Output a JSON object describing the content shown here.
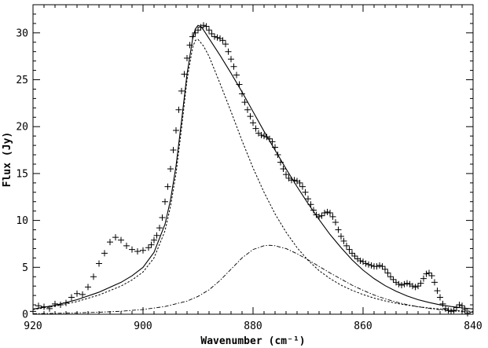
{
  "chart_data": {
    "type": "line",
    "title": "",
    "xlabel": "Wavenumber",
    "xlabel_unit": "(cm⁻¹)",
    "ylabel": "Flux (Jy)",
    "xlim": [
      920,
      840
    ],
    "ylim": [
      0,
      33
    ],
    "x_reversed": true,
    "grid": false,
    "legend": "none",
    "x_ticks": [
      920,
      900,
      880,
      860,
      840
    ],
    "x_tick_labels": [
      "920",
      "900",
      "880",
      "860",
      "840"
    ],
    "y_ticks": [
      0,
      5,
      10,
      15,
      20,
      25,
      30
    ],
    "y_tick_labels": [
      "0",
      "5",
      "10",
      "15",
      "20",
      "25",
      "30"
    ],
    "series": [
      {
        "style": "plus-markers",
        "points": [
          [
            920.0,
            0.3
          ],
          [
            919.0,
            0.9
          ],
          [
            918.0,
            0.8
          ],
          [
            917.0,
            0.6
          ],
          [
            916.0,
            1.1
          ],
          [
            915.0,
            1.0
          ],
          [
            914.0,
            1.2
          ],
          [
            913.0,
            1.8
          ],
          [
            912.0,
            2.2
          ],
          [
            911.0,
            2.1
          ],
          [
            910.0,
            2.9
          ],
          [
            909.0,
            4.0
          ],
          [
            908.0,
            5.4
          ],
          [
            907.0,
            6.5
          ],
          [
            906.0,
            7.7
          ],
          [
            905.0,
            8.2
          ],
          [
            904.0,
            7.9
          ],
          [
            903.0,
            7.3
          ],
          [
            902.0,
            6.9
          ],
          [
            901.0,
            6.7
          ],
          [
            900.0,
            6.8
          ],
          [
            899.0,
            7.1
          ],
          [
            898.5,
            7.4
          ],
          [
            898.0,
            7.9
          ],
          [
            897.5,
            8.4
          ],
          [
            897.0,
            9.2
          ],
          [
            896.5,
            10.3
          ],
          [
            896.0,
            12.0
          ],
          [
            895.5,
            13.6
          ],
          [
            895.0,
            15.5
          ],
          [
            894.5,
            17.5
          ],
          [
            894.0,
            19.6
          ],
          [
            893.5,
            21.8
          ],
          [
            893.0,
            23.8
          ],
          [
            892.5,
            25.6
          ],
          [
            892.0,
            27.3
          ],
          [
            891.5,
            28.7
          ],
          [
            891.0,
            29.6
          ],
          [
            890.5,
            30.0
          ],
          [
            890.0,
            30.3
          ],
          [
            889.5,
            30.6
          ],
          [
            889.0,
            30.8
          ],
          [
            888.5,
            30.7
          ],
          [
            888.0,
            30.3
          ],
          [
            887.5,
            29.9
          ],
          [
            887.0,
            29.6
          ],
          [
            886.5,
            29.5
          ],
          [
            886.0,
            29.4
          ],
          [
            885.5,
            29.2
          ],
          [
            885.0,
            28.8
          ],
          [
            884.5,
            28.0
          ],
          [
            884.0,
            27.2
          ],
          [
            883.5,
            26.4
          ],
          [
            883.0,
            25.5
          ],
          [
            882.5,
            24.5
          ],
          [
            882.0,
            23.5
          ],
          [
            881.5,
            22.6
          ],
          [
            881.0,
            21.8
          ],
          [
            880.5,
            21.1
          ],
          [
            880.0,
            20.4
          ],
          [
            879.5,
            19.8
          ],
          [
            879.0,
            19.3
          ],
          [
            878.5,
            19.1
          ],
          [
            878.0,
            19.0
          ],
          [
            877.5,
            18.9
          ],
          [
            877.0,
            18.7
          ],
          [
            876.5,
            18.4
          ],
          [
            876.0,
            17.8
          ],
          [
            875.5,
            17.0
          ],
          [
            875.0,
            16.2
          ],
          [
            874.5,
            15.5
          ],
          [
            874.0,
            14.9
          ],
          [
            873.5,
            14.5
          ],
          [
            873.0,
            14.3
          ],
          [
            872.5,
            14.3
          ],
          [
            872.0,
            14.2
          ],
          [
            871.5,
            14.0
          ],
          [
            871.0,
            13.6
          ],
          [
            870.5,
            13.0
          ],
          [
            870.0,
            12.3
          ],
          [
            869.5,
            11.7
          ],
          [
            869.0,
            11.1
          ],
          [
            868.5,
            10.6
          ],
          [
            868.0,
            10.4
          ],
          [
            867.5,
            10.5
          ],
          [
            867.0,
            10.8
          ],
          [
            866.5,
            10.9
          ],
          [
            866.0,
            10.8
          ],
          [
            865.5,
            10.4
          ],
          [
            865.0,
            9.8
          ],
          [
            864.5,
            9.0
          ],
          [
            864.0,
            8.3
          ],
          [
            863.5,
            7.8
          ],
          [
            863.0,
            7.3
          ],
          [
            862.5,
            6.9
          ],
          [
            862.0,
            6.5
          ],
          [
            861.5,
            6.2
          ],
          [
            861.0,
            5.9
          ],
          [
            860.5,
            5.7
          ],
          [
            860.0,
            5.6
          ],
          [
            859.5,
            5.4
          ],
          [
            859.0,
            5.3
          ],
          [
            858.5,
            5.2
          ],
          [
            858.0,
            5.1
          ],
          [
            857.5,
            5.1
          ],
          [
            857.0,
            5.2
          ],
          [
            856.5,
            5.1
          ],
          [
            856.0,
            4.8
          ],
          [
            855.5,
            4.4
          ],
          [
            855.0,
            4.0
          ],
          [
            854.5,
            3.7
          ],
          [
            854.0,
            3.4
          ],
          [
            853.5,
            3.2
          ],
          [
            853.0,
            3.1
          ],
          [
            852.5,
            3.2
          ],
          [
            852.0,
            3.3
          ],
          [
            851.5,
            3.2
          ],
          [
            851.0,
            3.0
          ],
          [
            850.5,
            2.9
          ],
          [
            850.0,
            3.0
          ],
          [
            849.5,
            3.3
          ],
          [
            849.0,
            3.8
          ],
          [
            848.5,
            4.3
          ],
          [
            848.0,
            4.4
          ],
          [
            847.5,
            4.1
          ],
          [
            847.0,
            3.4
          ],
          [
            846.5,
            2.5
          ],
          [
            846.0,
            1.8
          ],
          [
            845.5,
            1.1
          ],
          [
            845.0,
            0.6
          ],
          [
            844.5,
            0.4
          ],
          [
            844.0,
            0.3
          ],
          [
            843.5,
            0.4
          ],
          [
            843.0,
            0.7
          ],
          [
            842.5,
            1.0
          ],
          [
            842.0,
            0.9
          ],
          [
            841.5,
            0.5
          ],
          [
            841.0,
            0.1
          ]
        ]
      },
      {
        "style": "solid",
        "points": [
          [
            920,
            0.55
          ],
          [
            916,
            0.95
          ],
          [
            912,
            1.55
          ],
          [
            908,
            2.35
          ],
          [
            904,
            3.4
          ],
          [
            902,
            4.1
          ],
          [
            900,
            5.0
          ],
          [
            898,
            6.6
          ],
          [
            896,
            9.6
          ],
          [
            895,
            12.2
          ],
          [
            894,
            15.8
          ],
          [
            893,
            20.6
          ],
          [
            892,
            25.6
          ],
          [
            891,
            29.3
          ],
          [
            890.5,
            30.4
          ],
          [
            890,
            30.8
          ],
          [
            889.5,
            30.7
          ],
          [
            889,
            30.3
          ],
          [
            888,
            29.4
          ],
          [
            886,
            27.6
          ],
          [
            884,
            25.7
          ],
          [
            882,
            23.7
          ],
          [
            880,
            21.6
          ],
          [
            878,
            19.5
          ],
          [
            876,
            17.5
          ],
          [
            874,
            15.5
          ],
          [
            872,
            13.6
          ],
          [
            870,
            11.8
          ],
          [
            868,
            10.1
          ],
          [
            866,
            8.5
          ],
          [
            864,
            7.1
          ],
          [
            862,
            5.8
          ],
          [
            860,
            4.7
          ],
          [
            858,
            3.8
          ],
          [
            856,
            3.05
          ],
          [
            854,
            2.45
          ],
          [
            852,
            1.95
          ],
          [
            850,
            1.55
          ],
          [
            848,
            1.25
          ],
          [
            846,
            1.0
          ],
          [
            844,
            0.82
          ],
          [
            842,
            0.68
          ],
          [
            840,
            0.56
          ]
        ]
      },
      {
        "style": "dashed",
        "points": [
          [
            920,
            0.5
          ],
          [
            916,
            0.85
          ],
          [
            912,
            1.35
          ],
          [
            908,
            2.05
          ],
          [
            904,
            3.0
          ],
          [
            902,
            3.65
          ],
          [
            900,
            4.5
          ],
          [
            898,
            6.0
          ],
          [
            896,
            8.9
          ],
          [
            895,
            11.5
          ],
          [
            894,
            15.0
          ],
          [
            893,
            19.8
          ],
          [
            892,
            25.0
          ],
          [
            891,
            28.4
          ],
          [
            890.5,
            29.2
          ],
          [
            890,
            29.3
          ],
          [
            889,
            28.6
          ],
          [
            888,
            27.5
          ],
          [
            886,
            24.6
          ],
          [
            884,
            21.6
          ],
          [
            882,
            18.5
          ],
          [
            880,
            15.6
          ],
          [
            878,
            13.0
          ],
          [
            876,
            10.7
          ],
          [
            874,
            8.75
          ],
          [
            872,
            7.1
          ],
          [
            870,
            5.75
          ],
          [
            868,
            4.65
          ],
          [
            866,
            3.8
          ],
          [
            864,
            3.1
          ],
          [
            862,
            2.55
          ],
          [
            860,
            2.1
          ],
          [
            858,
            1.72
          ],
          [
            856,
            1.42
          ],
          [
            854,
            1.17
          ],
          [
            852,
            0.97
          ],
          [
            850,
            0.8
          ],
          [
            848,
            0.66
          ],
          [
            846,
            0.55
          ],
          [
            844,
            0.45
          ],
          [
            842,
            0.36
          ],
          [
            840,
            0.3
          ]
        ]
      },
      {
        "style": "dash-dot",
        "points": [
          [
            920,
            0.06
          ],
          [
            916,
            0.09
          ],
          [
            912,
            0.14
          ],
          [
            908,
            0.21
          ],
          [
            904,
            0.32
          ],
          [
            900,
            0.5
          ],
          [
            896,
            0.82
          ],
          [
            892,
            1.4
          ],
          [
            890,
            1.9
          ],
          [
            888,
            2.6
          ],
          [
            886,
            3.6
          ],
          [
            884,
            4.8
          ],
          [
            882,
            6.0
          ],
          [
            880,
            6.9
          ],
          [
            878,
            7.3
          ],
          [
            877,
            7.35
          ],
          [
            876,
            7.3
          ],
          [
            874,
            7.0
          ],
          [
            872,
            6.45
          ],
          [
            870,
            5.8
          ],
          [
            868,
            5.1
          ],
          [
            866,
            4.4
          ],
          [
            864,
            3.75
          ],
          [
            862,
            3.1
          ],
          [
            860,
            2.55
          ],
          [
            858,
            2.05
          ],
          [
            856,
            1.65
          ],
          [
            854,
            1.3
          ],
          [
            852,
            1.02
          ],
          [
            850,
            0.8
          ],
          [
            848,
            0.62
          ],
          [
            846,
            0.48
          ],
          [
            844,
            0.37
          ],
          [
            842,
            0.28
          ],
          [
            840,
            0.21
          ]
        ]
      }
    ]
  }
}
